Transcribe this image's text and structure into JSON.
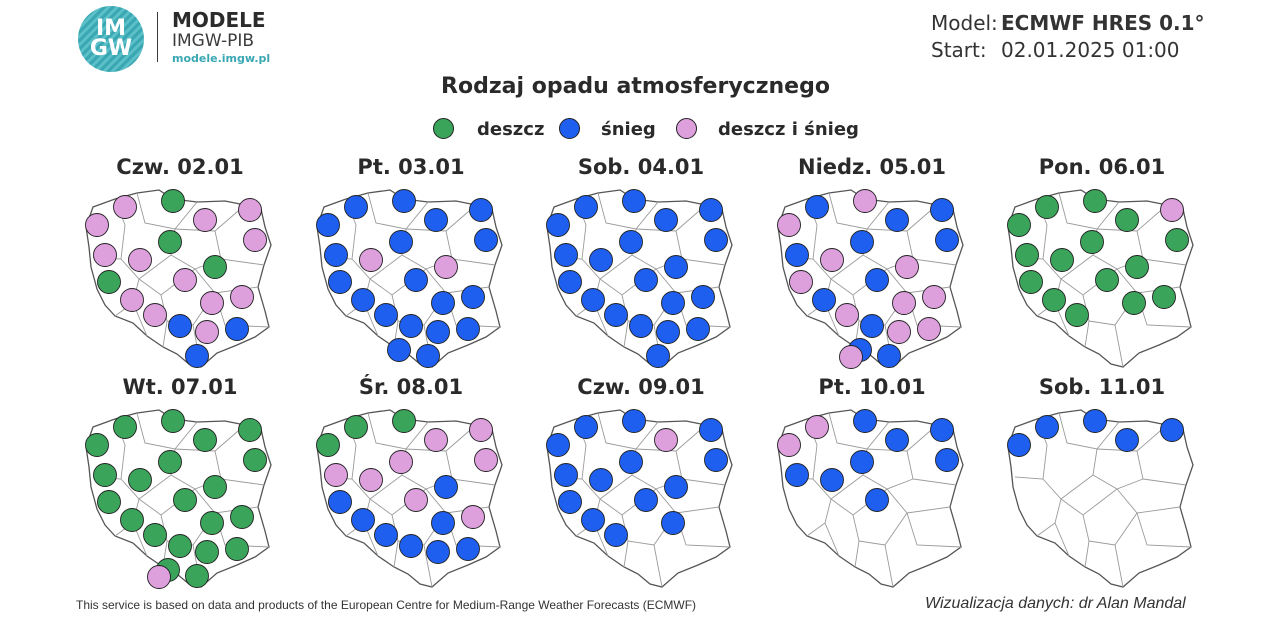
{
  "header": {
    "logo_text_line1": "IM",
    "logo_text_line2": "GW",
    "brand_line1": "MODELE",
    "brand_line2": "IMGW-PIB",
    "brand_url": "modele.imgw.pl",
    "model_label": "Model:",
    "model_value": "ECMWF HRES 0.1°",
    "start_label": "Start:",
    "start_value": "02.01.2025 01:00"
  },
  "title": "Rodzaj opadu atmosferycznego",
  "legend": [
    {
      "label": "deszcz",
      "color": "#3aa55a"
    },
    {
      "label": "śnieg",
      "color": "#1f5ff0"
    },
    {
      "label": "deszcz i śnieg",
      "color": "#dda0dd"
    }
  ],
  "colors": {
    "g": "#3aa55a",
    "b": "#1f5ff0",
    "p": "#dda0dd",
    "map_fill": "#ffffff",
    "map_border": "#9a9a9a"
  },
  "days": [
    {
      "label": "Czw. 02.01",
      "stations": {
        "p1": "p",
        "p2": "p",
        "p3": "g",
        "p4": "p",
        "p5": "p",
        "p6": "p",
        "p7": "g",
        "p8": "p",
        "p9": "p",
        "p10": "p",
        "p11": "g",
        "p12": "g",
        "p13": "p",
        "p14": "p",
        "p15": "p",
        "p16": "p",
        "p17": "b",
        "p18": "p",
        "p19": "b",
        "p20": "b"
      }
    },
    {
      "label": "Pt. 03.01",
      "stations": {
        "p1": "b",
        "p2": "b",
        "p3": "b",
        "p4": "b",
        "p5": "b",
        "p6": "b",
        "p7": "b",
        "p8": "b",
        "p9": "p",
        "p10": "b",
        "p11": "p",
        "p12": "b",
        "p13": "b",
        "p14": "b",
        "p15": "b",
        "p16": "b",
        "p17": "b",
        "p18": "b",
        "p19": "b",
        "p20": "b",
        "p21": "b"
      }
    },
    {
      "label": "Sob. 04.01",
      "stations": {
        "p1": "b",
        "p2": "b",
        "p3": "b",
        "p4": "b",
        "p5": "b",
        "p6": "b",
        "p7": "b",
        "p8": "b",
        "p9": "b",
        "p10": "b",
        "p11": "b",
        "p12": "b",
        "p13": "b",
        "p14": "b",
        "p15": "b",
        "p16": "b",
        "p17": "b",
        "p18": "b",
        "p19": "b",
        "p20": "b"
      }
    },
    {
      "label": "Niedz. 05.01",
      "stations": {
        "p1": "p",
        "p2": "b",
        "p3": "p",
        "p4": "b",
        "p5": "b",
        "p6": "b",
        "p7": "b",
        "p8": "b",
        "p9": "p",
        "p10": "b",
        "p11": "p",
        "p12": "p",
        "p13": "b",
        "p14": "p",
        "p15": "p",
        "p16": "p",
        "p17": "b",
        "p18": "p",
        "p19": "p",
        "p20": "b",
        "p21": "b",
        "p22": "p"
      }
    },
    {
      "label": "Pon. 06.01",
      "stations": {
        "p1": "g",
        "p2": "g",
        "p3": "g",
        "p4": "g",
        "p5": "p",
        "p6": "g",
        "p7": "g",
        "p8": "g",
        "p9": "g",
        "p10": "g",
        "p11": "g",
        "p12": "g",
        "p13": "g",
        "p14": "g",
        "p15": "g",
        "p16": "g"
      }
    },
    {
      "label": "Wt. 07.01",
      "stations": {
        "p1": "g",
        "p2": "g",
        "p3": "g",
        "p4": "g",
        "p5": "g",
        "p6": "g",
        "p7": "g",
        "p8": "g",
        "p9": "g",
        "p10": "g",
        "p11": "g",
        "p12": "g",
        "p13": "g",
        "p14": "g",
        "p15": "g",
        "p16": "g",
        "p17": "g",
        "p18": "g",
        "p19": "g",
        "p20": "g",
        "p21": "g",
        "p22": "p"
      }
    },
    {
      "label": "Śr. 08.01",
      "stations": {
        "p1": "g",
        "p2": "g",
        "p3": "g",
        "p4": "p",
        "p5": "p",
        "p6": "p",
        "p7": "p",
        "p8": "p",
        "p9": "p",
        "p10": "p",
        "p11": "b",
        "p12": "b",
        "p13": "b",
        "p14": "b",
        "p15": "b",
        "p16": "p",
        "p17": "b",
        "p18": "b",
        "p19": "b"
      }
    },
    {
      "label": "Czw. 09.01",
      "stations": {
        "p1": "b",
        "p2": "b",
        "p3": "b",
        "p4": "p",
        "p5": "b",
        "p6": "b",
        "p7": "b",
        "p8": "b",
        "p9": "b",
        "p10": "b",
        "p11": "b",
        "p12": "b",
        "p13": "b",
        "p14": "b",
        "p15": "b"
      }
    },
    {
      "label": "Pt. 10.01",
      "stations": {
        "p1": "p",
        "p2": "p",
        "p3": "b",
        "p4": "b",
        "p5": "b",
        "p6": "b",
        "p7": "b",
        "p8": "b",
        "p9": "b",
        "p10": "b"
      }
    },
    {
      "label": "Sob. 11.01",
      "stations": {
        "p1": "b",
        "p2": "b",
        "p3": "b",
        "p4": "b",
        "p5": "b"
      }
    }
  ],
  "footer": {
    "left": "This service is based on data and products of the European Centre for Medium-Range Weather Forecasts (ECMWF)",
    "right": "Wizualizacja danych: dr Alan Mandal"
  }
}
